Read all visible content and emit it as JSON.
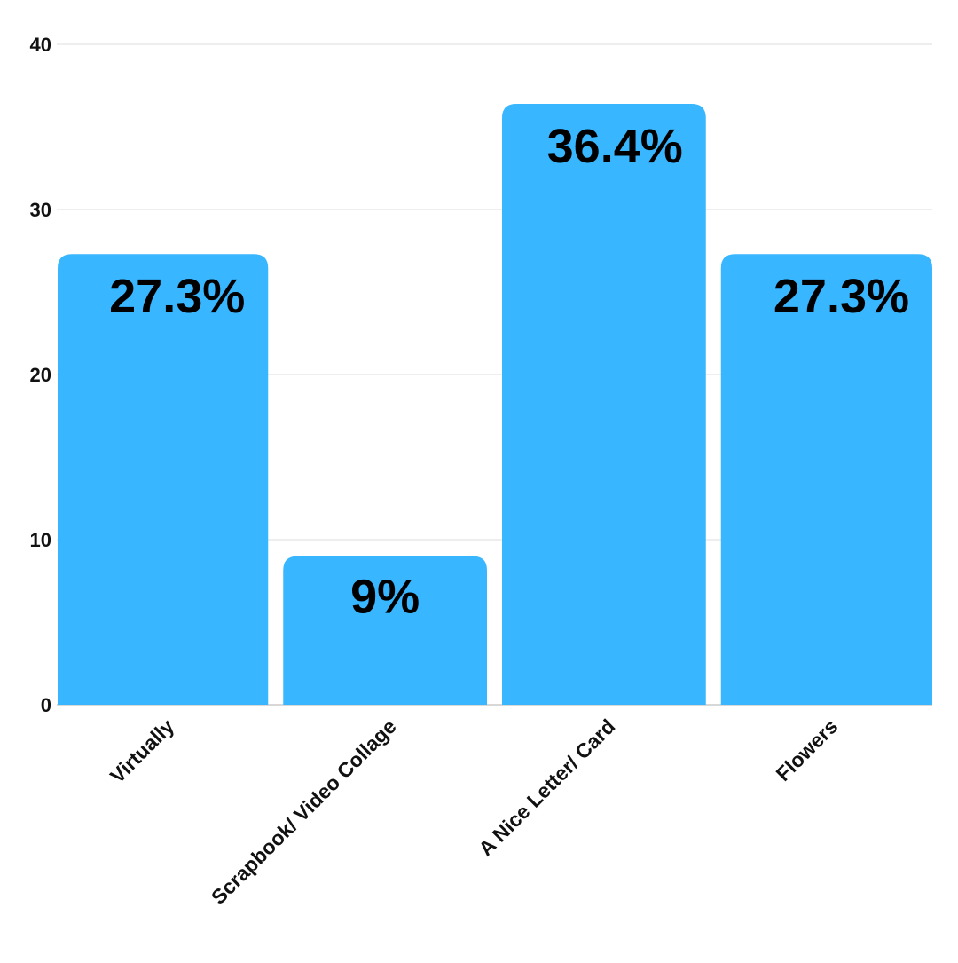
{
  "chart_data": {
    "type": "bar",
    "categories": [
      "Virtually",
      "Scrapbook/ Video Collage",
      "A Nice Letter/ Card",
      "Flowers"
    ],
    "values": [
      27.3,
      9,
      36.4,
      27.3
    ],
    "data_labels": [
      "27.3%",
      "9%",
      "36.4%",
      "27.3%"
    ],
    "ylim": [
      0,
      40
    ],
    "yticks": [
      0,
      10,
      20,
      30,
      40
    ],
    "grid": true,
    "legend": "none",
    "title": "",
    "xlabel": "",
    "ylabel": "",
    "colors": {
      "bar": "#38b6ff",
      "grid": "#dddddd",
      "baseline": "#cccccc",
      "text": "#111111"
    }
  }
}
